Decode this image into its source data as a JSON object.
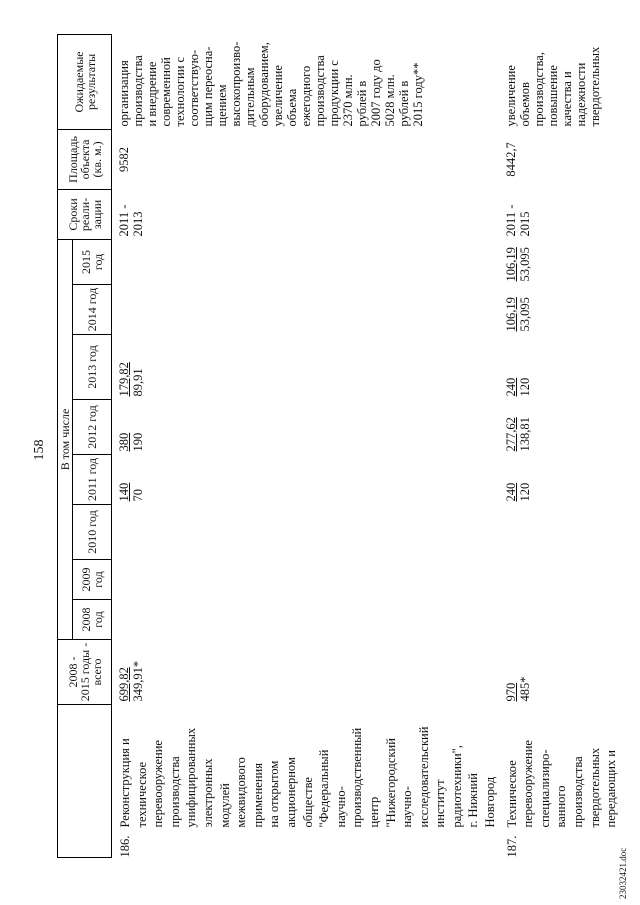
{
  "page_number": "158",
  "table": {
    "header": {
      "total_lines": [
        "2008 -",
        "2015 годы -",
        "всего"
      ],
      "including": "В том числе",
      "years": [
        "2008 год",
        "2009 год",
        "2010 год",
        "2011 год",
        "2012 год",
        "2013 год",
        "2014 год",
        "2015 год"
      ],
      "period_lines": [
        "Сроки",
        "реали-",
        "зации"
      ],
      "area_lines": [
        "Площадь",
        "объекта",
        "(кв. м.)"
      ],
      "results_lines": [
        "Ожидаемые",
        "результаты"
      ]
    },
    "rows": [
      {
        "number": "186.",
        "name_lines": [
          "Реконструкция и",
          "техническое",
          "перевооружение",
          "производства",
          "унифицированных",
          "электронных",
          "модулей",
          "межвидового",
          "применения",
          "на открытом",
          "акционерном",
          "обществе",
          "\"Федеральный",
          "научно-",
          "производственный",
          "центр",
          "\"Нижегородский",
          "научно-",
          "исследовательский",
          "институт",
          "радиотехники\",",
          "г. Нижний",
          "Новгород"
        ],
        "total": [
          "699,82",
          "349,91*"
        ],
        "years": [
          null,
          null,
          null,
          [
            "140",
            "70"
          ],
          [
            "380",
            "190"
          ],
          [
            "179,82",
            "89,91"
          ],
          null,
          null
        ],
        "period_lines": [
          "2011 -",
          "2013"
        ],
        "area": "9582",
        "results_lines": [
          "организация",
          "производства",
          "и внедрение",
          "современной",
          "технологии с",
          "соответствую-",
          "щим переосна-",
          "щением",
          "высокопроизво-",
          "дительным",
          "оборудованием,",
          "увеличение",
          "объема",
          "ежегодного",
          "производства",
          "продукции с",
          "2370 млн.",
          "рублей в",
          "2007 году до",
          "5028 млн.",
          "рублей в",
          "2015 году**"
        ]
      },
      {
        "number": "187.",
        "name_lines": [
          "Техническое",
          "перевооружение",
          "специализиро-",
          "ванного",
          "производства",
          "твердотельных",
          "передающих и"
        ],
        "total": [
          "970",
          "485*"
        ],
        "years": [
          null,
          null,
          null,
          [
            "240",
            "120"
          ],
          [
            "277,62",
            "138,81"
          ],
          [
            "240",
            "120"
          ],
          [
            "106,19",
            "53,095"
          ],
          [
            "106,19",
            "53,095"
          ]
        ],
        "period_lines": [
          "2011 -",
          "2015"
        ],
        "area": "8442,7",
        "results_lines": [
          "увеличение",
          "объемов",
          "производства,",
          "повышение",
          "качества и",
          "надежности",
          "твердотельных"
        ]
      }
    ]
  },
  "footer": "23032421.doc"
}
